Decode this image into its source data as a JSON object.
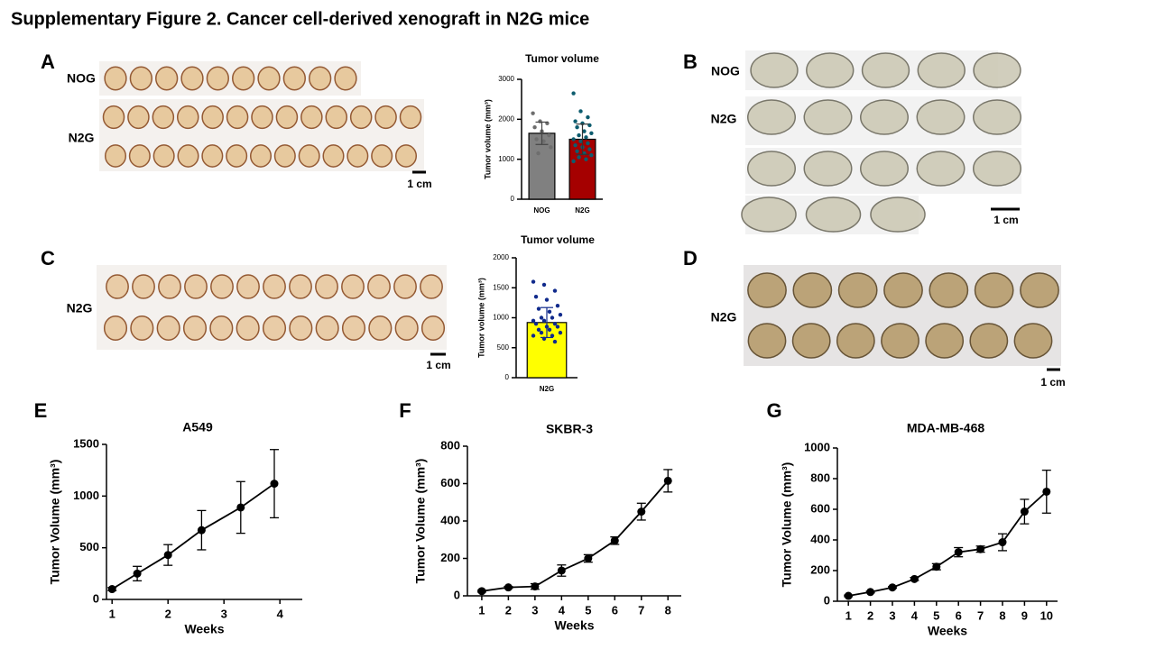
{
  "title": "Supplementary  Figure 2. Cancer cell-derived xenograft in N2G mice",
  "photo_panels": [
    {
      "label": "A",
      "rows": [
        "NOG",
        "N2G"
      ],
      "scale": "1 cm"
    },
    {
      "label": "B",
      "rows": [
        "NOG",
        "N2G"
      ],
      "scale": "1 cm"
    },
    {
      "label": "C",
      "rows": [
        "N2G"
      ],
      "scale": "1 cm"
    },
    {
      "label": "D",
      "rows": [
        "N2G"
      ],
      "scale": "1 cm"
    }
  ],
  "chart_data": [
    {
      "type": "bar",
      "title": "Tumor volume",
      "ylabel": "Tumor volume (mm³)",
      "categories": [
        "NOG",
        "N2G"
      ],
      "values": [
        1650,
        1500
      ],
      "errors": [
        280,
        380
      ],
      "colors": [
        "#808080",
        "#a50000"
      ],
      "point_colors": [
        "#6e6e6e",
        "#0d5c6e"
      ],
      "points": [
        [
          2150,
          1950,
          1900,
          1800,
          1700,
          1600,
          1500,
          1450,
          1300,
          1150
        ],
        [
          2650,
          2200,
          2050,
          1950,
          1900,
          1850,
          1800,
          1700,
          1650,
          1600,
          1550,
          1500,
          1450,
          1400,
          1350,
          1300,
          1250,
          1200,
          1150,
          1100,
          1050,
          1000,
          950
        ]
      ],
      "ylim": [
        0,
        3000
      ],
      "yticks": [
        0,
        1000,
        2000,
        3000
      ]
    },
    {
      "type": "bar",
      "title": "Tumor volume",
      "ylabel": "Tumor volume (mm³)",
      "categories": [
        "N2G"
      ],
      "values": [
        920
      ],
      "errors": [
        250
      ],
      "colors": [
        "#ffff00"
      ],
      "point_colors": [
        "#102a8c"
      ],
      "points": [
        [
          1600,
          1550,
          1450,
          1350,
          1300,
          1200,
          1150,
          1100,
          1050,
          1000,
          1000,
          950,
          950,
          900,
          900,
          850,
          850,
          800,
          800,
          750,
          750,
          700,
          700,
          650,
          600
        ]
      ],
      "ylim": [
        0,
        2000
      ],
      "yticks": [
        0,
        500,
        1000,
        1500,
        2000
      ]
    },
    {
      "type": "line",
      "panel": "E",
      "title": "A549",
      "xlabel": "Weeks",
      "ylabel": "Tumor Volume (mm³)",
      "x": [
        1,
        1.45,
        2,
        2.6,
        3.3,
        3.9
      ],
      "values": [
        100,
        250,
        430,
        670,
        890,
        1120
      ],
      "errors": [
        15,
        70,
        100,
        190,
        250,
        330
      ],
      "color": "#000000",
      "xlim": [
        0.9,
        4.4
      ],
      "xticks": [
        1,
        2,
        3,
        4
      ],
      "ylim": [
        0,
        1500
      ],
      "yticks": [
        0,
        500,
        1000,
        1500
      ]
    },
    {
      "type": "line",
      "panel": "F",
      "title": "SKBR-3",
      "xlabel": "Weeks",
      "ylabel": "Tumor Volume (mm³)",
      "x": [
        1,
        2,
        3,
        4,
        5,
        6,
        7,
        8
      ],
      "values": [
        25,
        45,
        50,
        135,
        200,
        295,
        450,
        615
      ],
      "errors": [
        5,
        5,
        15,
        30,
        20,
        20,
        45,
        60
      ],
      "color": "#000000",
      "xlim": [
        0.46,
        8.5
      ],
      "xticks": [
        1,
        2,
        3,
        4,
        5,
        6,
        7,
        8
      ],
      "ylim": [
        0,
        800
      ],
      "yticks": [
        0,
        200,
        400,
        600,
        800
      ]
    },
    {
      "type": "line",
      "panel": "G",
      "title": "MDA-MB-468",
      "xlabel": "Weeks",
      "ylabel": "Tumor Volume (mm³)",
      "x": [
        1,
        2,
        3,
        4,
        5,
        6,
        7,
        8,
        9,
        10
      ],
      "values": [
        35,
        60,
        90,
        145,
        225,
        320,
        340,
        385,
        585,
        715
      ],
      "errors": [
        5,
        5,
        5,
        10,
        20,
        30,
        20,
        55,
        80,
        140
      ],
      "color": "#000000",
      "xlim": [
        0.5,
        10.5
      ],
      "xticks": [
        1,
        2,
        3,
        4,
        5,
        6,
        7,
        8,
        9,
        10
      ],
      "ylim": [
        0,
        1000
      ],
      "yticks": [
        0,
        200,
        400,
        600,
        800,
        1000
      ]
    }
  ]
}
